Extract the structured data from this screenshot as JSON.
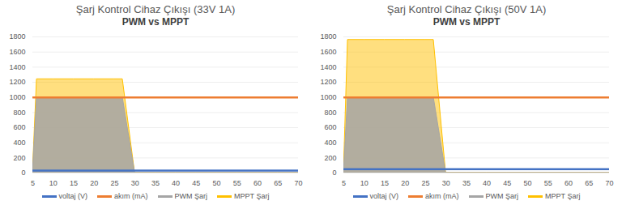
{
  "chart_data": [
    {
      "type": "line",
      "title": "Şarj Kontrol Cihaz Çıkışı (33V 1A)",
      "subtitle": "PWM vs MPPT",
      "x": [
        5,
        6,
        10,
        15,
        20,
        25,
        27,
        30,
        35,
        40,
        45,
        50,
        55,
        60,
        65,
        70
      ],
      "xlim": [
        5,
        70
      ],
      "xticks": [
        5,
        10,
        15,
        20,
        25,
        30,
        35,
        40,
        45,
        50,
        55,
        60,
        65,
        70
      ],
      "ylim": [
        0,
        1800
      ],
      "yticks": [
        0,
        200,
        400,
        600,
        800,
        1000,
        1200,
        1400,
        1600,
        1800
      ],
      "grid": true,
      "legend": "bottom",
      "series": [
        {
          "name": "voltaj (V)",
          "type": "line",
          "color": "#4472c4",
          "values": [
            33,
            33,
            33,
            33,
            33,
            33,
            33,
            33,
            33,
            33,
            33,
            33,
            33,
            33,
            33,
            33
          ]
        },
        {
          "name": "akım (mA)",
          "type": "line",
          "color": "#ed7d31",
          "values": [
            1000,
            1000,
            1000,
            1000,
            1000,
            1000,
            1000,
            1000,
            1000,
            1000,
            1000,
            1000,
            1000,
            1000,
            1000,
            1000
          ]
        },
        {
          "name": "PWM Şarj",
          "type": "area",
          "color": "#a5a5a5",
          "values": [
            null,
            1000,
            1000,
            1000,
            1000,
            1000,
            1000,
            null,
            null,
            null,
            null,
            null,
            null,
            null,
            null,
            null
          ]
        },
        {
          "name": "MPPT Şarj",
          "type": "area",
          "color": "#ffc000",
          "values": [
            null,
            1240,
            1240,
            1240,
            1240,
            1240,
            1240,
            null,
            null,
            null,
            null,
            null,
            null,
            null,
            null,
            null
          ]
        }
      ]
    },
    {
      "type": "line",
      "title": "Şarj Kontrol Cihaz Çıkışı (50V 1A)",
      "subtitle": "PWM vs MPPT",
      "x": [
        5,
        6,
        10,
        15,
        20,
        25,
        27,
        30,
        35,
        40,
        45,
        50,
        55,
        60,
        65,
        70
      ],
      "xlim": [
        5,
        70
      ],
      "xticks": [
        5,
        10,
        15,
        20,
        25,
        30,
        35,
        40,
        45,
        50,
        55,
        60,
        65,
        70
      ],
      "ylim": [
        0,
        1800
      ],
      "yticks": [
        0,
        200,
        400,
        600,
        800,
        1000,
        1200,
        1400,
        1600,
        1800
      ],
      "grid": true,
      "legend": "bottom",
      "series": [
        {
          "name": "voltaj (V)",
          "type": "line",
          "color": "#4472c4",
          "values": [
            50,
            50,
            50,
            50,
            50,
            50,
            50,
            50,
            50,
            50,
            50,
            50,
            50,
            50,
            50,
            50
          ]
        },
        {
          "name": "akım (mA)",
          "type": "line",
          "color": "#ed7d31",
          "values": [
            1000,
            1000,
            1000,
            1000,
            1000,
            1000,
            1000,
            1000,
            1000,
            1000,
            1000,
            1000,
            1000,
            1000,
            1000,
            1000
          ]
        },
        {
          "name": "PWM Şarj",
          "type": "area",
          "color": "#a5a5a5",
          "values": [
            null,
            1000,
            1000,
            1000,
            1000,
            1000,
            1000,
            null,
            null,
            null,
            null,
            null,
            null,
            null,
            null,
            null
          ]
        },
        {
          "name": "MPPT Şarj",
          "type": "area",
          "color": "#ffc000",
          "values": [
            null,
            1760,
            1760,
            1760,
            1760,
            1760,
            1760,
            null,
            null,
            null,
            null,
            null,
            null,
            null,
            null,
            null
          ]
        }
      ]
    }
  ]
}
